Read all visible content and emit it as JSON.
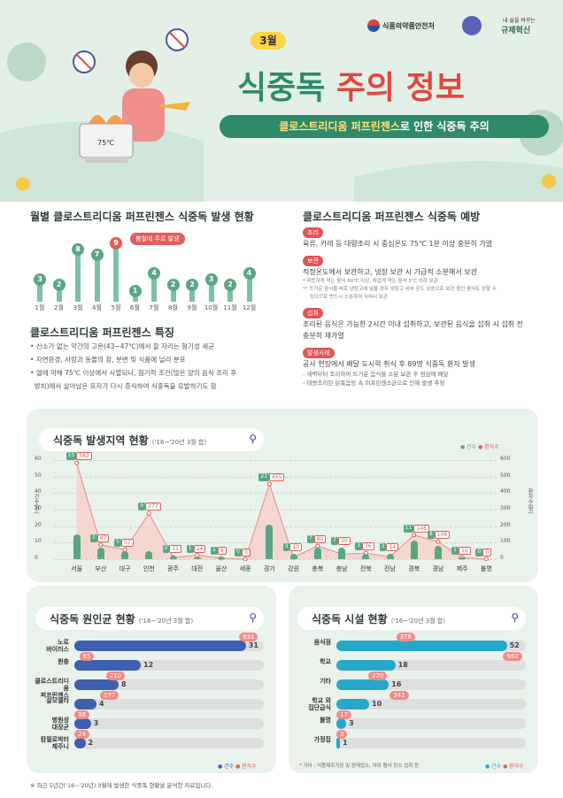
{
  "header": {
    "agency": "식품의약품안전처",
    "slogan1": "내 삶을 바꾸는",
    "slogan2": "규제혁신",
    "month": "3월",
    "title_a": "식중독 ",
    "title_b": "주의 정보",
    "subtitle_a": "클로스트리디움 퍼프린젠스",
    "subtitle_b": "로 인한 식중독 주의",
    "pot_temp": "75℃"
  },
  "monthly": {
    "title": "월별 클로스트리디움 퍼프린젠스 식중독 발생 현황",
    "callout": "봄철에 주로 발생",
    "months": [
      "1월",
      "2월",
      "3월",
      "4월",
      "5월",
      "6월",
      "7월",
      "8월",
      "9월",
      "10월",
      "11월",
      "12월"
    ],
    "values": [
      3,
      2,
      8,
      7,
      9,
      1,
      4,
      2,
      2,
      3,
      2,
      4
    ]
  },
  "features": {
    "title": "클로스트리디움 퍼프린젠스 특징",
    "items": [
      "산소가 없는 악간의 고온(43~47℃)에서 잘 자라는 혐기성 세균",
      "자연환경, 사람과 동물의 장, 분변 및 식품에 널리 분포",
      "열에 약해 75℃ 이상에서 사멸되나, 혐기적 조건(많은 양의 음식 조리 후",
      "방치)에서 살아남은 포자가 다시 증식하여 식중독을 유발하기도 함"
    ]
  },
  "prevention": {
    "title": "클로스트리디움 퍼프린젠스 식중독 예방",
    "t1": "조리",
    "p1": "육류, 카레 등 대량조리 시 중심온도 75℃ 1분 이상 충분히 가열",
    "t2": "보관",
    "p2": "적정온도에서 보관하고, 냉장 보관 시 가급적 소분해서 보관",
    "n1": "* 따뜻하게 먹는 음식 60℃ 이상, 차갑게 먹는 음식 5℃ 이하 보관",
    "n2": "** 뜨거운 음식을 바로 냉장고에 넣을 경우 냉장고 내부 온도 상승으로 보관 중인 음식도 상할 수",
    "n3": "있으므로 반드시 소분하여 식혀서 보관",
    "t3": "섭취",
    "p3": "조리된 음식은 가능한 2시간 이내 섭취하고, 보관된 음식을 섭취 시 섭취 전",
    "p3b": "충분히 재가열",
    "t4": "발생사례",
    "p4": "공사 현장에서 배달 도시락 취식 후 89명 식중독 환자 발생",
    "c1": "- 새벽부터 조리하여 뜨거운 음식을 소분 보관 후 점심에 배달",
    "c2": "- 대량조리된 닭볶음탕 속 퍼프린젠스균으로 인해 발생 추정"
  },
  "region": {
    "title": "식중독 발생지역 현황",
    "sub": "('16~'20년 3월 합)",
    "legend_cases": "● 건수",
    "legend_patients": "● 환자수",
    "ylabel_l": "건수(건)",
    "ylabel_r": "환자수(명)",
    "yticks_l": [
      "60",
      "50",
      "40",
      "30",
      "20",
      "10",
      "0"
    ],
    "yticks_r": [
      "600",
      "500",
      "400",
      "300",
      "200",
      "100",
      "0"
    ],
    "regions": [
      "서울",
      "부산",
      "대구",
      "인천",
      "광주",
      "대전",
      "울산",
      "세종",
      "경기",
      "강원",
      "충북",
      "충남",
      "전북",
      "전남",
      "경북",
      "경남",
      "제주",
      "불명"
    ],
    "cases": [
      15,
      7,
      5,
      5,
      2,
      1,
      1,
      0,
      21,
      3,
      7,
      7,
      3,
      3,
      11,
      8,
      1,
      0
    ],
    "patients": [
      "582",
      "87",
      "57",
      "277",
      "11",
      "24",
      "6",
      "0",
      "455",
      "10",
      "80",
      "30",
      "36",
      "14",
      "146",
      "106",
      "10",
      "0"
    ]
  },
  "cause": {
    "title": "식중독 원인균 현황",
    "sub": "('16~'20년 3월 합)",
    "legend": [
      "● 건수",
      "● 환자수"
    ],
    "labels": [
      "노로\n바이러스",
      "원충",
      "클로스트리디움\n퍼프린젠스",
      "살모넬라",
      "병원성\n대장균",
      "캄필로박터\n제주니"
    ],
    "cases": [
      "31",
      "12",
      "8",
      "4",
      "3",
      "2"
    ],
    "patients": [
      "931",
      "65",
      "210",
      "177",
      "38",
      "24"
    ]
  },
  "facility": {
    "title": "식중독 시설 현황",
    "sub": "('16~'20년 3월 합)",
    "legend": [
      "● 건수",
      "● 환자수"
    ],
    "labels": [
      "음식점",
      "학교",
      "기타",
      "학교 외\n집단급식",
      "불명",
      "가정집"
    ],
    "cases": [
      "52",
      "18",
      "16",
      "10",
      "3",
      "1"
    ],
    "patients": [
      "378",
      "982",
      "220",
      "341",
      "17",
      "3"
    ],
    "note": "* 기타 : 식품제조가공 및 판매업소, 야외 행사 장소 섭취 등"
  },
  "footer": "※ 최근 5년간('16~'20년) 3월에 발생한 식중독 현황을 분석한 자료입니다."
}
